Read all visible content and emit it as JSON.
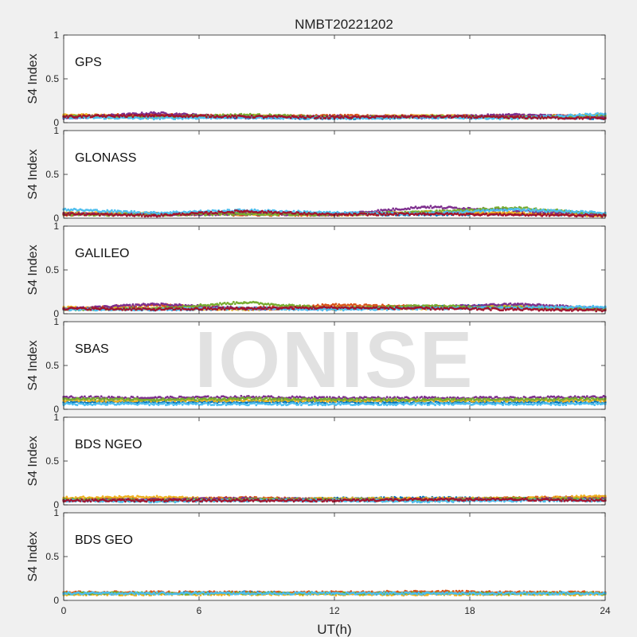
{
  "chart_data": {
    "type": "scatter",
    "title": "NMBT20221202",
    "xlabel": "UT(h)",
    "ylabel": "S4 Index",
    "xlim": [
      0,
      24
    ],
    "ylim": [
      0,
      1
    ],
    "xticks": [
      "0",
      "6",
      "12",
      "18",
      "24"
    ],
    "yticks": [
      "0",
      "0.5",
      "1"
    ],
    "watermark": "IONISE",
    "colors": [
      "#0072BD",
      "#D95319",
      "#EDB120",
      "#7E2F8E",
      "#77AC30",
      "#4DBEEE",
      "#A2142F"
    ],
    "panels": [
      {
        "label": "GPS",
        "series": [
          {
            "color": "#0072BD",
            "x": [
              0,
              4,
              8,
              12,
              16,
              20,
              24
            ],
            "y": [
              0.06,
              0.07,
              0.06,
              0.05,
              0.06,
              0.07,
              0.05
            ]
          },
          {
            "color": "#D95319",
            "x": [
              0,
              4,
              8,
              12,
              16,
              20,
              24
            ],
            "y": [
              0.08,
              0.09,
              0.07,
              0.08,
              0.07,
              0.08,
              0.07
            ]
          },
          {
            "color": "#EDB120",
            "x": [
              0,
              4,
              8,
              12,
              16,
              20,
              24
            ],
            "y": [
              0.09,
              0.07,
              0.08,
              0.06,
              0.08,
              0.06,
              0.09
            ]
          },
          {
            "color": "#7E2F8E",
            "x": [
              0,
              4,
              8,
              12,
              16,
              20,
              24
            ],
            "y": [
              0.05,
              0.11,
              0.06,
              0.07,
              0.06,
              0.09,
              0.06
            ]
          },
          {
            "color": "#77AC30",
            "x": [
              0,
              4,
              8,
              12,
              16,
              20,
              24
            ],
            "y": [
              0.07,
              0.06,
              0.09,
              0.06,
              0.07,
              0.06,
              0.08
            ]
          },
          {
            "color": "#4DBEEE",
            "x": [
              0,
              4,
              8,
              12,
              16,
              20,
              24
            ],
            "y": [
              0.06,
              0.05,
              0.06,
              0.05,
              0.06,
              0.05,
              0.1
            ]
          },
          {
            "color": "#A2142F",
            "x": [
              0,
              4,
              8,
              12,
              16,
              20,
              24
            ],
            "y": [
              0.07,
              0.08,
              0.07,
              0.06,
              0.07,
              0.06,
              0.05
            ]
          }
        ]
      },
      {
        "label": "GLONASS",
        "series": [
          {
            "color": "#0072BD",
            "x": [
              0,
              4,
              8,
              12,
              16,
              20,
              24
            ],
            "y": [
              0.05,
              0.04,
              0.06,
              0.05,
              0.04,
              0.05,
              0.04
            ]
          },
          {
            "color": "#D95319",
            "x": [
              0,
              4,
              8,
              12,
              16,
              20,
              24
            ],
            "y": [
              0.04,
              0.05,
              0.04,
              0.04,
              0.06,
              0.05,
              0.04
            ]
          },
          {
            "color": "#EDB120",
            "x": [
              0,
              4,
              8,
              12,
              16,
              20,
              24
            ],
            "y": [
              0.06,
              0.05,
              0.05,
              0.04,
              0.07,
              0.06,
              0.03
            ]
          },
          {
            "color": "#7E2F8E",
            "x": [
              0,
              4,
              8,
              12,
              16,
              20,
              24
            ],
            "y": [
              0.05,
              0.04,
              0.05,
              0.04,
              0.13,
              0.09,
              0.04
            ]
          },
          {
            "color": "#77AC30",
            "x": [
              0,
              4,
              8,
              12,
              16,
              20,
              24
            ],
            "y": [
              0.04,
              0.04,
              0.05,
              0.04,
              0.07,
              0.12,
              0.05
            ]
          },
          {
            "color": "#4DBEEE",
            "x": [
              0,
              4,
              8,
              12,
              16,
              20,
              24
            ],
            "y": [
              0.1,
              0.06,
              0.09,
              0.06,
              0.05,
              0.1,
              0.06
            ]
          },
          {
            "color": "#A2142F",
            "x": [
              0,
              4,
              8,
              12,
              16,
              20,
              24
            ],
            "y": [
              0.05,
              0.03,
              0.08,
              0.04,
              0.05,
              0.04,
              0.03
            ]
          }
        ]
      },
      {
        "label": "GALILEO",
        "series": [
          {
            "color": "#0072BD",
            "x": [
              0,
              4,
              8,
              12,
              16,
              20,
              24
            ],
            "y": [
              0.06,
              0.05,
              0.06,
              0.06,
              0.08,
              0.09,
              0.05
            ]
          },
          {
            "color": "#D95319",
            "x": [
              0,
              4,
              8,
              12,
              16,
              20,
              24
            ],
            "y": [
              0.05,
              0.1,
              0.06,
              0.1,
              0.08,
              0.07,
              0.05
            ]
          },
          {
            "color": "#EDB120",
            "x": [
              0,
              4,
              8,
              12,
              16,
              20,
              24
            ],
            "y": [
              0.07,
              0.06,
              0.05,
              0.07,
              0.06,
              0.09,
              0.06
            ]
          },
          {
            "color": "#7E2F8E",
            "x": [
              0,
              4,
              8,
              12,
              16,
              20,
              24
            ],
            "y": [
              0.05,
              0.11,
              0.06,
              0.06,
              0.07,
              0.11,
              0.06
            ]
          },
          {
            "color": "#77AC30",
            "x": [
              0,
              4,
              8,
              12,
              16,
              20,
              24
            ],
            "y": [
              0.05,
              0.06,
              0.13,
              0.06,
              0.09,
              0.07,
              0.05
            ]
          },
          {
            "color": "#4DBEEE",
            "x": [
              0,
              4,
              8,
              12,
              16,
              20,
              24
            ],
            "y": [
              0.05,
              0.05,
              0.06,
              0.05,
              0.06,
              0.07,
              0.08
            ]
          },
          {
            "color": "#A2142F",
            "x": [
              0,
              4,
              8,
              12,
              16,
              20,
              24
            ],
            "y": [
              0.06,
              0.05,
              0.06,
              0.07,
              0.06,
              0.05,
              0.04
            ]
          }
        ]
      },
      {
        "label": "SBAS",
        "series": [
          {
            "color": "#0072BD",
            "x": [
              0,
              4,
              8,
              12,
              16,
              20,
              24
            ],
            "y": [
              0.08,
              0.08,
              0.08,
              0.08,
              0.08,
              0.08,
              0.08
            ]
          },
          {
            "color": "#EDB120",
            "x": [
              0,
              4,
              8,
              12,
              16,
              20,
              24
            ],
            "y": [
              0.1,
              0.1,
              0.1,
              0.1,
              0.1,
              0.1,
              0.1
            ]
          },
          {
            "color": "#7E2F8E",
            "x": [
              0,
              4,
              8,
              12,
              16,
              20,
              24
            ],
            "y": [
              0.14,
              0.13,
              0.14,
              0.13,
              0.13,
              0.13,
              0.14
            ]
          },
          {
            "color": "#77AC30",
            "x": [
              0,
              4,
              8,
              12,
              16,
              20,
              24
            ],
            "y": [
              0.12,
              0.11,
              0.12,
              0.11,
              0.11,
              0.11,
              0.12
            ]
          },
          {
            "color": "#4DBEEE",
            "x": [
              0,
              4,
              8,
              12,
              16,
              20,
              24
            ],
            "y": [
              0.06,
              0.06,
              0.06,
              0.06,
              0.06,
              0.06,
              0.06
            ]
          }
        ]
      },
      {
        "label": "BDS NGEO",
        "series": [
          {
            "color": "#0072BD",
            "x": [
              0,
              4,
              8,
              12,
              16,
              20,
              24
            ],
            "y": [
              0.06,
              0.05,
              0.06,
              0.07,
              0.08,
              0.07,
              0.08
            ]
          },
          {
            "color": "#D95319",
            "x": [
              0,
              4,
              8,
              12,
              16,
              20,
              24
            ],
            "y": [
              0.07,
              0.06,
              0.08,
              0.06,
              0.06,
              0.08,
              0.09
            ]
          },
          {
            "color": "#EDB120",
            "x": [
              0,
              4,
              8,
              12,
              16,
              20,
              24
            ],
            "y": [
              0.08,
              0.09,
              0.06,
              0.07,
              0.07,
              0.07,
              0.1
            ]
          },
          {
            "color": "#7E2F8E",
            "x": [
              0,
              4,
              8,
              12,
              16,
              20,
              24
            ],
            "y": [
              0.05,
              0.06,
              0.07,
              0.06,
              0.06,
              0.06,
              0.07
            ]
          },
          {
            "color": "#77AC30",
            "x": [
              0,
              4,
              8,
              12,
              16,
              20,
              24
            ],
            "y": [
              0.06,
              0.05,
              0.06,
              0.06,
              0.05,
              0.07,
              0.06
            ]
          },
          {
            "color": "#4DBEEE",
            "x": [
              0,
              4,
              8,
              12,
              16,
              20,
              24
            ],
            "y": [
              0.05,
              0.04,
              0.05,
              0.05,
              0.04,
              0.05,
              0.05
            ]
          },
          {
            "color": "#A2142F",
            "x": [
              0,
              4,
              8,
              12,
              16,
              20,
              24
            ],
            "y": [
              0.05,
              0.05,
              0.05,
              0.05,
              0.06,
              0.06,
              0.05
            ]
          }
        ]
      },
      {
        "label": "BDS GEO",
        "series": [
          {
            "color": "#0072BD",
            "x": [
              0,
              4,
              8,
              12,
              16,
              20,
              24
            ],
            "y": [
              0.08,
              0.08,
              0.09,
              0.08,
              0.08,
              0.08,
              0.08
            ]
          },
          {
            "color": "#D95319",
            "x": [
              0,
              4,
              8,
              12,
              16,
              20,
              24
            ],
            "y": [
              0.09,
              0.09,
              0.09,
              0.09,
              0.1,
              0.09,
              0.09
            ]
          },
          {
            "color": "#EDB120",
            "x": [
              0,
              4,
              8,
              12,
              16,
              20,
              24
            ],
            "y": [
              0.07,
              0.07,
              0.07,
              0.07,
              0.07,
              0.07,
              0.07
            ]
          },
          {
            "color": "#77AC30",
            "x": [
              0,
              4,
              8,
              12,
              16,
              20,
              24
            ],
            "y": [
              0.08,
              0.08,
              0.08,
              0.08,
              0.08,
              0.08,
              0.08
            ]
          },
          {
            "color": "#4DBEEE",
            "x": [
              0,
              4,
              8,
              12,
              16,
              20,
              24
            ],
            "y": [
              0.08,
              0.08,
              0.08,
              0.08,
              0.08,
              0.08,
              0.08
            ]
          }
        ]
      }
    ]
  }
}
